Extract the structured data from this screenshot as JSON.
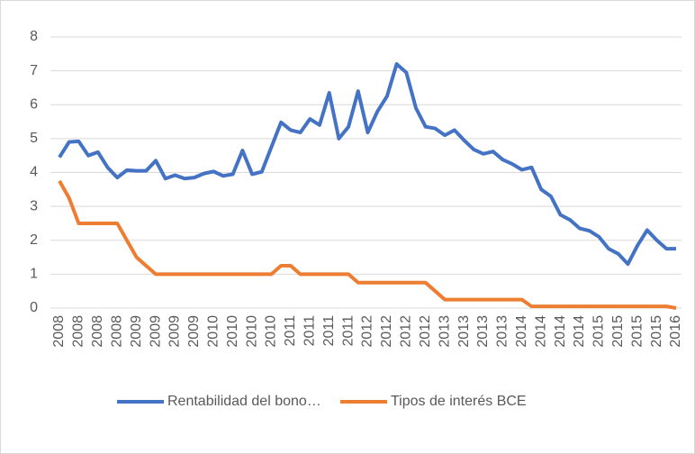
{
  "chart_data": {
    "type": "line",
    "categories": [
      "2008",
      null,
      "2008",
      null,
      "2008",
      null,
      "2008",
      null,
      "2009",
      null,
      "2009",
      null,
      "2009",
      null,
      "2009",
      null,
      "2010",
      null,
      "2010",
      null,
      "2010",
      null,
      "2010",
      null,
      "2011",
      null,
      "2011",
      null,
      "2011",
      null,
      "2011",
      null,
      "2012",
      null,
      "2012",
      null,
      "2012",
      null,
      "2012",
      null,
      "2013",
      null,
      "2013",
      null,
      "2013",
      null,
      "2013",
      null,
      "2014",
      null,
      "2014",
      null,
      "2014",
      null,
      "2014",
      null,
      "2015",
      null,
      "2015",
      null,
      "2015",
      null,
      "2015",
      null,
      "2016"
    ],
    "series": [
      {
        "name": "Rentabilidad del bono…",
        "color": "#4472c4",
        "values": [
          4.45,
          4.9,
          4.92,
          4.5,
          4.6,
          4.15,
          3.85,
          4.07,
          4.05,
          4.05,
          4.35,
          3.82,
          3.92,
          3.82,
          3.85,
          3.97,
          4.03,
          3.9,
          3.95,
          4.65,
          3.95,
          4.02,
          4.75,
          5.48,
          5.25,
          5.18,
          5.58,
          5.4,
          6.35,
          5.0,
          5.35,
          6.4,
          5.18,
          5.8,
          6.25,
          7.2,
          6.95,
          5.9,
          5.35,
          5.3,
          5.1,
          5.25,
          4.95,
          4.68,
          4.55,
          4.62,
          4.38,
          4.25,
          4.08,
          4.15,
          3.5,
          3.3,
          2.75,
          2.6,
          2.35,
          2.28,
          2.1,
          1.75,
          1.6,
          1.3,
          1.85,
          2.3,
          2.0,
          1.75,
          1.75
        ]
      },
      {
        "name": "Tipos de interés BCE",
        "color": "#ed7d31",
        "values": [
          3.75,
          3.25,
          2.5,
          2.5,
          2.5,
          2.5,
          2.5,
          2.0,
          1.5,
          1.25,
          1.0,
          1.0,
          1.0,
          1.0,
          1.0,
          1.0,
          1.0,
          1.0,
          1.0,
          1.0,
          1.0,
          1.0,
          1.0,
          1.25,
          1.25,
          1.0,
          1.0,
          1.0,
          1.0,
          1.0,
          1.0,
          0.75,
          0.75,
          0.75,
          0.75,
          0.75,
          0.75,
          0.75,
          0.75,
          0.5,
          0.25,
          0.25,
          0.25,
          0.25,
          0.25,
          0.25,
          0.25,
          0.25,
          0.25,
          0.05,
          0.05,
          0.05,
          0.05,
          0.05,
          0.05,
          0.05,
          0.05,
          0.05,
          0.05,
          0.05,
          0.05,
          0.05,
          0.05,
          0.05,
          0.0
        ]
      }
    ],
    "ylim": [
      0,
      8
    ],
    "yticks": [
      0,
      1,
      2,
      3,
      4,
      5,
      6,
      7,
      8
    ],
    "grid": true,
    "legend": "bottom"
  }
}
